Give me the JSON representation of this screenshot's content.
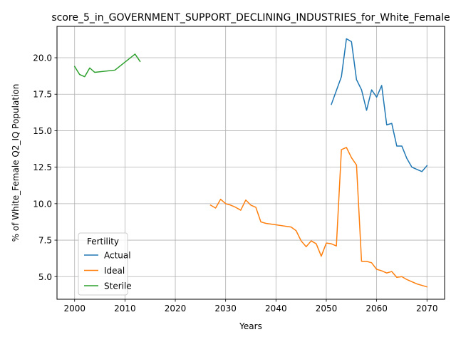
{
  "chart_data": {
    "type": "line",
    "title": "score_5_in_GOVERNMENT_SUPPORT_DECLINING_INDUSTRIES_for_White_Female",
    "xlabel": "Years",
    "ylabel": "% of White_Female Q2_IQ Population",
    "xlim": [
      1996.5,
      2073.5
    ],
    "ylim": [
      3.45,
      22.15
    ],
    "xticks": [
      2000,
      2010,
      2020,
      2030,
      2040,
      2050,
      2060,
      2070
    ],
    "yticks": [
      5.0,
      7.5,
      10.0,
      12.5,
      15.0,
      17.5,
      20.0
    ],
    "grid": true,
    "legend": {
      "title": "Fertility",
      "placement": "lower-left"
    },
    "series": [
      {
        "name": "Actual",
        "color": "#1f77b4",
        "x": [
          2051,
          2053,
          2054,
          2055,
          2056,
          2057,
          2058,
          2059,
          2060,
          2061,
          2062,
          2063,
          2064,
          2065,
          2066,
          2067,
          2069,
          2070
        ],
        "y": [
          16.8,
          18.7,
          21.3,
          21.1,
          18.5,
          17.8,
          16.4,
          17.8,
          17.3,
          18.1,
          15.4,
          15.5,
          13.95,
          13.95,
          13.1,
          12.5,
          12.2,
          12.6
        ]
      },
      {
        "name": "Ideal",
        "color": "#ff7f0e",
        "x": [
          2027,
          2028,
          2029,
          2030,
          2031,
          2032,
          2033,
          2034,
          2035,
          2036,
          2037,
          2038,
          2039,
          2040,
          2041,
          2042,
          2043,
          2044,
          2045,
          2046,
          2047,
          2048,
          2049,
          2050,
          2051,
          2052,
          2053,
          2054,
          2055,
          2056,
          2057,
          2058,
          2059,
          2060,
          2061,
          2062,
          2063,
          2064,
          2065,
          2066,
          2067,
          2068,
          2069,
          2070
        ],
        "y": [
          9.9,
          9.7,
          10.3,
          10.0,
          9.9,
          9.75,
          9.55,
          10.25,
          9.9,
          9.75,
          8.75,
          8.65,
          8.6,
          8.55,
          8.5,
          8.45,
          8.4,
          8.15,
          7.45,
          7.05,
          7.45,
          7.25,
          6.4,
          7.3,
          7.25,
          7.1,
          13.7,
          13.85,
          13.15,
          12.65,
          6.05,
          6.05,
          5.95,
          5.5,
          5.4,
          5.25,
          5.35,
          4.95,
          5.0,
          4.8,
          4.65,
          4.5,
          4.4,
          4.3
        ]
      },
      {
        "name": "Sterile",
        "color": "#2ca02c",
        "x": [
          2000,
          2001,
          2002,
          2003,
          2004,
          2008,
          2012,
          2013
        ],
        "y": [
          19.4,
          18.85,
          18.7,
          19.3,
          19.0,
          19.15,
          20.25,
          19.75
        ]
      }
    ]
  }
}
